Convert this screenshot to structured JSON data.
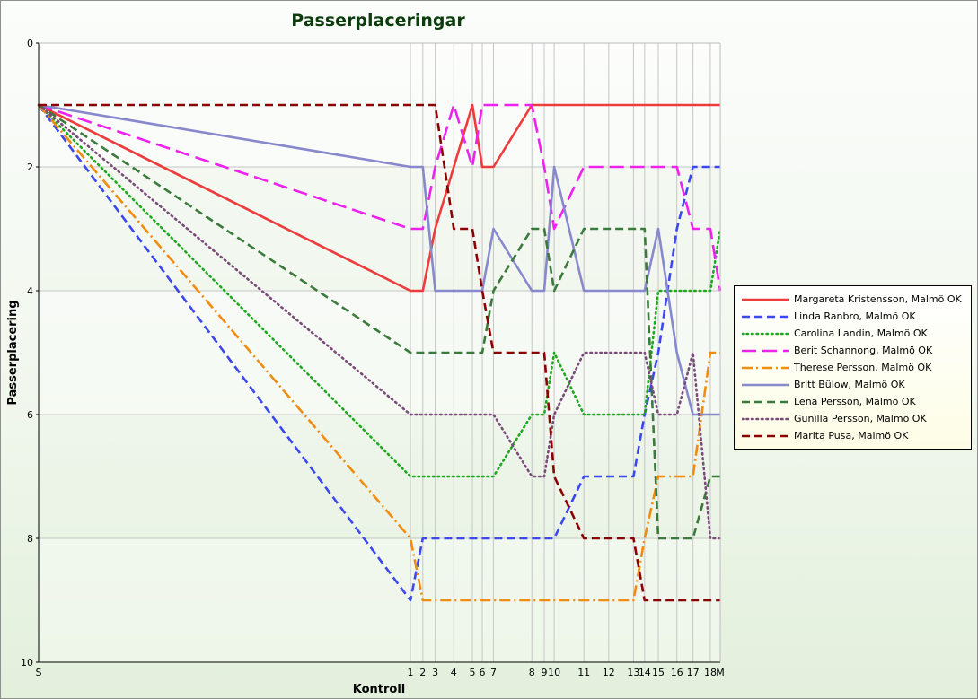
{
  "chart_data": {
    "type": "line",
    "title": "Passerplaceringar",
    "xlabel": "Kontroll",
    "ylabel": "Passerplacering",
    "ylim": [
      0,
      10
    ],
    "y_inverted": true,
    "y_ticks": [
      0,
      2,
      4,
      6,
      8,
      10
    ],
    "grid": true,
    "legend_position": "right",
    "x_categories": [
      "S",
      "1",
      "2",
      "3",
      "4",
      "5",
      "6",
      "7",
      "8",
      "9",
      "10",
      "11",
      "12",
      "13",
      "14",
      "15",
      "16",
      "17",
      "18",
      "M"
    ],
    "x_positions": [
      0,
      30,
      31,
      32,
      33.5,
      35,
      35.8,
      36.7,
      39.8,
      40.8,
      41.6,
      44,
      46,
      48,
      48.9,
      50,
      51.5,
      52.8,
      54.2,
      55
    ],
    "series": [
      {
        "name": "Margareta Kristensson, Malmö OK",
        "color": "#ee3b3b",
        "dash": "solid",
        "values": [
          1,
          4,
          4,
          3,
          2,
          1,
          2,
          2,
          1,
          1,
          1,
          1,
          1,
          1,
          1,
          1,
          1,
          1,
          1,
          1
        ]
      },
      {
        "name": "Linda Ranbro, Malmö OK",
        "color": "#3b48ee",
        "dash": "dashed",
        "values": [
          1,
          9,
          8,
          8,
          8,
          8,
          8,
          8,
          8,
          8,
          8,
          7,
          7,
          7,
          6,
          5,
          3,
          2,
          2,
          2
        ]
      },
      {
        "name": "Carolina Landin, Malmö OK",
        "color": "#1ea81e",
        "dash": "dotted",
        "values": [
          1,
          7,
          7,
          7,
          7,
          7,
          7,
          7,
          6,
          6,
          5,
          6,
          6,
          6,
          6,
          4,
          4,
          4,
          4,
          3
        ]
      },
      {
        "name": "Berit Schannong, Malmö OK",
        "color": "#ee22ee",
        "dash": "longdash",
        "values": [
          1,
          3,
          3,
          2,
          1,
          2,
          1,
          1,
          1,
          2,
          3,
          2,
          2,
          2,
          2,
          2,
          2,
          3,
          3,
          4
        ]
      },
      {
        "name": "Therese Persson, Malmö OK",
        "color": "#f08c10",
        "dash": "dashdot",
        "values": [
          1,
          8,
          9,
          9,
          9,
          9,
          9,
          9,
          9,
          9,
          9,
          9,
          9,
          9,
          8,
          7,
          7,
          7,
          5,
          5
        ]
      },
      {
        "name": "Britt Bülow, Malmö OK",
        "color": "#8888cc",
        "dash": "solid",
        "values": [
          1,
          2,
          2,
          4,
          4,
          4,
          4,
          3,
          4,
          4,
          2,
          4,
          4,
          4,
          4,
          3,
          5,
          6,
          6,
          6
        ]
      },
      {
        "name": "Lena Persson, Malmö OK",
        "color": "#3a7a3a",
        "dash": "dashed",
        "values": [
          1,
          5,
          5,
          5,
          5,
          5,
          5,
          4,
          3,
          3,
          4,
          3,
          3,
          3,
          3,
          8,
          8,
          8,
          7,
          7
        ]
      },
      {
        "name": "Gunilla Persson, Malmö OK",
        "color": "#7a4a7a",
        "dash": "dotted",
        "values": [
          1,
          6,
          6,
          6,
          6,
          6,
          6,
          6,
          7,
          7,
          6,
          5,
          5,
          5,
          5,
          6,
          6,
          5,
          8,
          8
        ]
      },
      {
        "name": "Marita Pusa, Malmö OK",
        "color": "#8b0000",
        "dash": "dashed",
        "values": [
          1,
          1,
          1,
          1,
          3,
          3,
          4,
          5,
          5,
          5,
          7,
          8,
          8,
          8,
          9,
          9,
          9,
          9,
          9,
          9
        ]
      }
    ]
  }
}
